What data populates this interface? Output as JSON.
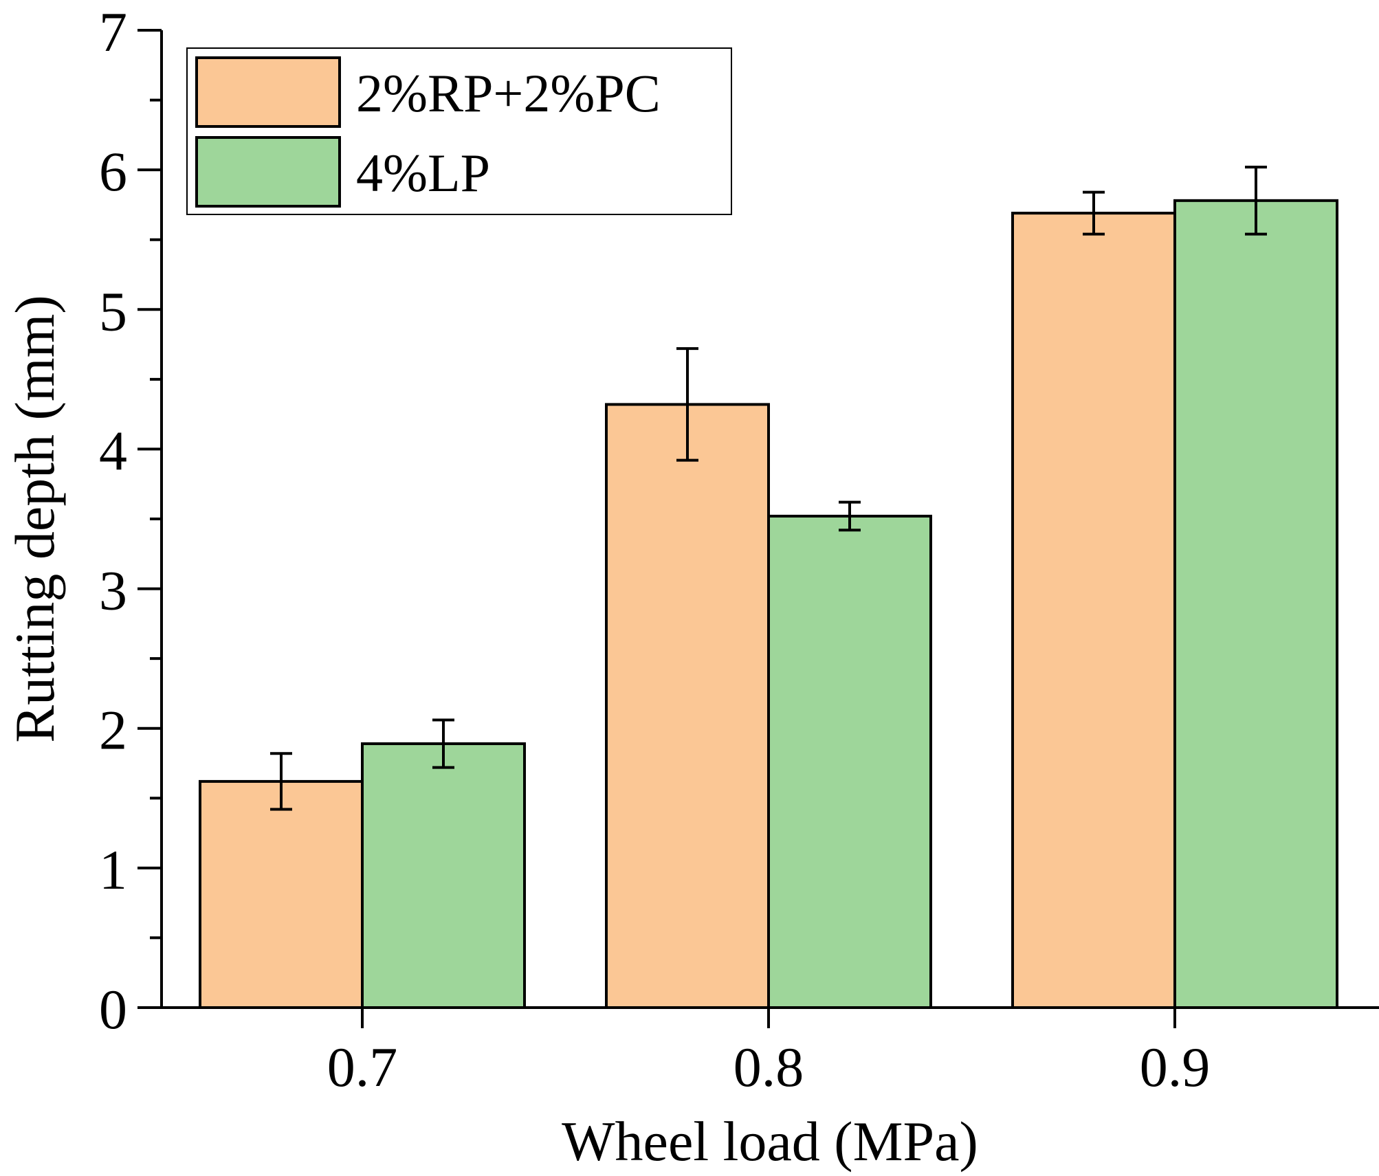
{
  "chart_data": {
    "type": "bar",
    "title": "",
    "xlabel": "Wheel load (MPa)",
    "ylabel": "Rutting depth (mm)",
    "categories": [
      "0.7",
      "0.8",
      "0.9"
    ],
    "ylim": [
      0,
      7
    ],
    "yticks": [
      "0",
      "1",
      "2",
      "3",
      "4",
      "5",
      "6",
      "7"
    ],
    "series": [
      {
        "name": "2%RP+2%PC",
        "values": [
          1.62,
          4.32,
          5.69
        ],
        "errors": [
          0.2,
          0.4,
          0.15
        ],
        "color": "#FBC795"
      },
      {
        "name": "4%LP",
        "values": [
          1.89,
          3.52,
          5.78
        ],
        "errors": [
          0.17,
          0.1,
          0.24
        ],
        "color": "#9ED69A"
      }
    ],
    "legend_position": "top-left",
    "grid": false
  }
}
